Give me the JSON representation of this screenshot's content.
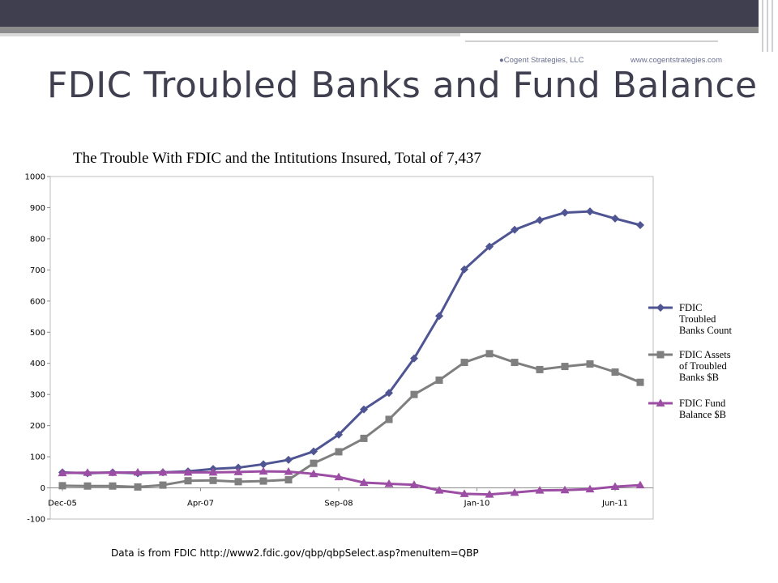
{
  "header": {
    "company": "●Cogent Strategies, LLC",
    "website": "www.cogentstrategies.com",
    "title": "FDIC Troubled Banks and Fund Balance"
  },
  "footnote": "Data is from FDIC http://www2.fdic.gov/qbp/qbpSelect.asp?menuItem=QBP",
  "colors": {
    "troubled_count": "#4f5592",
    "troubled_assets": "#7f7f7f",
    "fund_balance": "#9b4ea3",
    "header_dark": "#3f3f50"
  },
  "chart_data": {
    "type": "line",
    "title": "The Trouble With FDIC  and the Intitutions Insured, Total of 7,437",
    "xlabel": "",
    "ylabel": "",
    "ylim": [
      -100,
      1000
    ],
    "yticks": [
      -100,
      0,
      100,
      200,
      300,
      400,
      500,
      600,
      700,
      800,
      900,
      1000
    ],
    "x_tick_labels": [
      "Dec-05",
      "Apr-07",
      "Sep-08",
      "Jan-10",
      "Jun-11"
    ],
    "legend_position": "right",
    "grid": false,
    "series": [
      {
        "name": "FDIC Troubled Banks Count",
        "marker": "diamond",
        "values": [
          50,
          47,
          50,
          47,
          50,
          53,
          61,
          65,
          76,
          90,
          117,
          171,
          252,
          305,
          416,
          552,
          702,
          775,
          829,
          860,
          884,
          888,
          865,
          844
        ]
      },
      {
        "name": "FDIC Assets of Troubled Banks $B",
        "marker": "square",
        "values": [
          7,
          6,
          6,
          3,
          9,
          23,
          24,
          20,
          22,
          26,
          79,
          116,
          159,
          220,
          300,
          346,
          403,
          431,
          403,
          380,
          390,
          398,
          372,
          339
        ]
      },
      {
        "name": "FDIC Fund Balance $B",
        "marker": "triangle",
        "values": [
          48,
          49,
          49,
          50,
          50,
          50,
          50,
          51,
          53,
          52,
          45,
          35,
          17,
          13,
          10,
          -8,
          -19,
          -21,
          -15,
          -8,
          -7,
          -4,
          4,
          9
        ]
      }
    ]
  }
}
